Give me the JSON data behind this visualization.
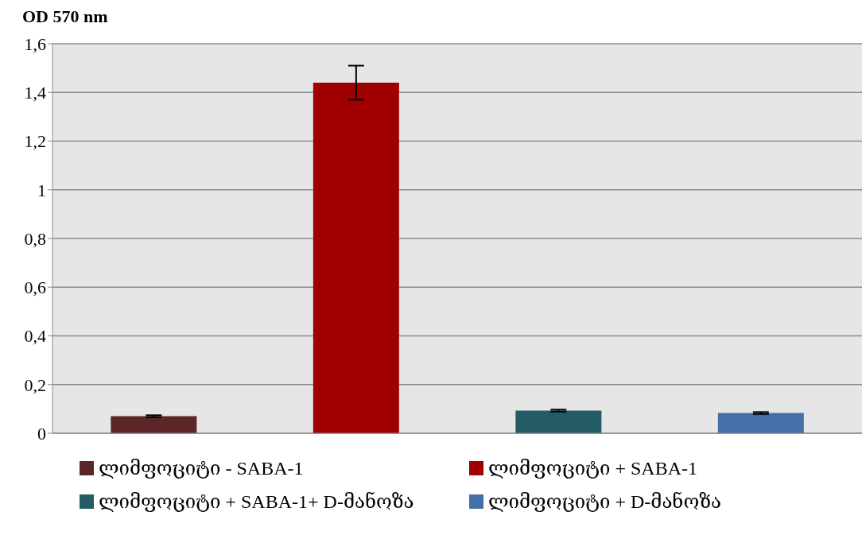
{
  "chart_data": {
    "type": "bar",
    "ylabel": "OD 570 nm",
    "categories": [
      null,
      null,
      null,
      null
    ],
    "series": [
      {
        "name": "ლიმფოციტი -  SABA-1",
        "color": "#5c2626",
        "values": [
          0.07,
          null,
          null,
          null
        ],
        "errors": [
          0.004,
          null,
          null,
          null
        ]
      },
      {
        "name": "ლიმფოციტი + SABA-1",
        "color": "#a00000",
        "values": [
          null,
          1.44,
          null,
          null
        ],
        "errors": [
          null,
          0.07,
          null,
          null
        ]
      },
      {
        "name": "ლიმფოციტი + SABA-1+ D-მანოზა",
        "color": "#245c66",
        "values": [
          null,
          null,
          0.093,
          null
        ],
        "errors": [
          null,
          null,
          0.004,
          null
        ]
      },
      {
        "name": "ლიმფოციტი + D-მანოზა",
        "color": "#4470a8",
        "values": [
          null,
          null,
          null,
          0.083
        ],
        "errors": [
          null,
          null,
          null,
          0.004
        ]
      }
    ],
    "ylim": [
      0,
      1.6
    ],
    "yticks": [
      0,
      {
        "value": 0.2,
        "label": "0,2"
      },
      {
        "value": 0.4,
        "label": "0,4"
      },
      {
        "value": 0.6,
        "label": "0,6"
      },
      {
        "value": 0.8,
        "label": "0,8"
      },
      1,
      {
        "value": 1.2,
        "label": "1,2"
      },
      {
        "value": 1.4,
        "label": "1,4"
      },
      {
        "value": 1.6,
        "label": "1,6"
      }
    ],
    "grid": "y",
    "legend": "bottom"
  }
}
